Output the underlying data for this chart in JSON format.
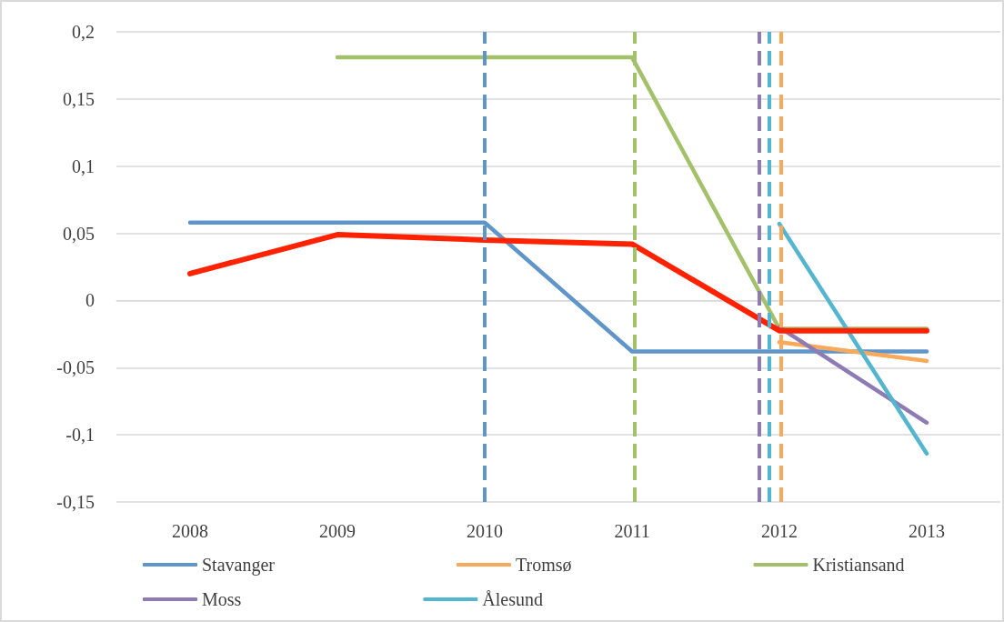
{
  "chart_data": {
    "type": "line",
    "x": [
      2008,
      2009,
      2010,
      2011,
      2012,
      2013
    ],
    "xlim": [
      2007.5,
      2013.5
    ],
    "xticks": [
      2008,
      2009,
      2010,
      2011,
      2012,
      2013
    ],
    "ylim": [
      -0.15,
      0.2
    ],
    "yticks": [
      {
        "value": -0.15,
        "label": "-0,15"
      },
      {
        "value": -0.1,
        "label": "-0,1"
      },
      {
        "value": -0.05,
        "label": "-0,05"
      },
      {
        "value": 0,
        "label": "0"
      },
      {
        "value": 0.05,
        "label": "0,05"
      },
      {
        "value": 0.1,
        "label": "0,1"
      },
      {
        "value": 0.15,
        "label": "0,15"
      },
      {
        "value": 0.2,
        "label": "0,2"
      }
    ],
    "series": [
      {
        "name": "Stavanger",
        "color": "#6095c9",
        "values": [
          0.058,
          0.058,
          0.058,
          -0.038,
          -0.038,
          -0.038
        ]
      },
      {
        "name": "Tromsø",
        "color": "#f9a95a",
        "values": [
          null,
          null,
          null,
          null,
          -0.031,
          -0.045
        ]
      },
      {
        "name": "Kristiansand",
        "color": "#a3c16a",
        "values": [
          null,
          0.181,
          0.181,
          0.181,
          -0.021,
          -0.021
        ]
      },
      {
        "name": "Moss",
        "color": "#8f7bb4",
        "values": [
          null,
          null,
          null,
          null,
          -0.02,
          -0.091
        ]
      },
      {
        "name": "Ålesund",
        "color": "#54b5cf",
        "values": [
          null,
          null,
          null,
          null,
          0.057,
          -0.114
        ]
      },
      {
        "color": "#ff2200",
        "values": [
          0.02,
          0.049,
          0.045,
          0.042,
          -0.0225,
          -0.0225
        ]
      }
    ],
    "ref_lines": [
      {
        "axis": "x",
        "value": 2010,
        "color": "#6095c9",
        "line_style": "dashed"
      },
      {
        "axis": "x",
        "value": 2011.02,
        "color": "#a3c16a",
        "line_style": "dashed"
      },
      {
        "axis": "x",
        "value": 2011.86,
        "color": "#8f7bb4",
        "line_style": "dashed"
      },
      {
        "axis": "x",
        "value": 2011.93,
        "color": "#54b5cf",
        "line_style": "dashed"
      },
      {
        "axis": "x",
        "value": 2012.01,
        "color": "#f9a95a",
        "line_style": "dashed"
      }
    ],
    "grid": "y",
    "legend": "bottom",
    "marker": "none",
    "line_style": "solid"
  }
}
